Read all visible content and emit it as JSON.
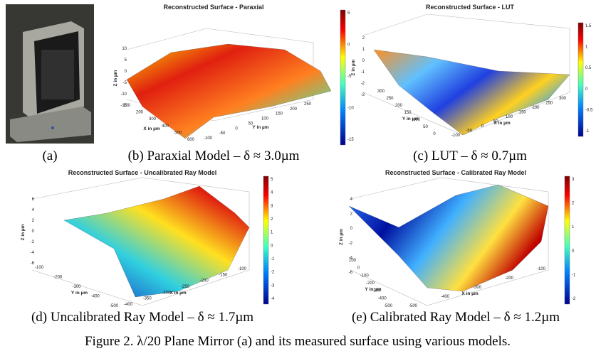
{
  "figure": {
    "caption": "Figure 2. λ/20 Plane Mirror (a) and its measured surface using various models.",
    "panels": [
      {
        "caption": "(a)"
      },
      {
        "caption": "(b) Paraxial Model – δ ≈ 3.0µm",
        "title": "Reconstructed Surface - Paraxial",
        "z_label": "Z in µm",
        "x_label": "X in µm",
        "y_label": "Y in µm",
        "colorbar_ticks": [
          "5",
          "0",
          "-5",
          "-10",
          "-15"
        ],
        "z_ticks": [
          "10",
          "5",
          "0",
          "-5",
          "-10",
          "-15"
        ],
        "x_ticks": [
          "100",
          "200",
          "300",
          "400",
          "500",
          "600"
        ],
        "y_ticks": [
          "-100",
          "-50",
          "0",
          "50",
          "100",
          "150",
          "200",
          "250"
        ]
      },
      {
        "caption": "(c) LUT – δ ≈ 0.7µm",
        "title": "Reconstructed Surface - LUT",
        "z_label": "Z in µm",
        "x_label": "X in µm",
        "y_label": "Y in µm",
        "colorbar_ticks": [
          "1.5",
          "1",
          "0.5",
          "0",
          "-0.5",
          "-1"
        ],
        "z_ticks": [
          "2",
          "1",
          "0",
          "-1",
          "-2",
          "-3"
        ],
        "x_ticks": [
          "-100",
          "-50",
          "0",
          "50",
          "100",
          "150",
          "200",
          "250",
          "300"
        ],
        "y_ticks": [
          "300",
          "250",
          "200",
          "150",
          "100",
          "50",
          "0"
        ]
      },
      {
        "caption": "(d) Uncalibrated Ray Model – δ ≈ 1.7µm",
        "title": "Reconstructed Surface - Uncalibrated Ray Model",
        "z_label": "Z in µm",
        "x_label": "X in µm",
        "y_label": "Y in µm",
        "colorbar_ticks": [
          "5",
          "4",
          "3",
          "2",
          "1",
          "0",
          "-1",
          "-2",
          "-3",
          "-4"
        ],
        "z_ticks": [
          "6",
          "4",
          "2",
          "0",
          "-2",
          "-4",
          "-6"
        ],
        "x_ticks": [
          "-400",
          "-350",
          "-300",
          "-250",
          "-200",
          "-150",
          "-100"
        ],
        "y_ticks": [
          "-100",
          "-200",
          "-300",
          "-400",
          "-500"
        ]
      },
      {
        "caption": "(e) Calibrated Ray Model – δ ≈ 1.2µm",
        "title": "Reconstructed Surface - Calibrated Ray Model",
        "z_label": "Z in µm",
        "x_label": "X in µm",
        "y_label": "Y in µm",
        "colorbar_ticks": [
          "3",
          "2",
          "1",
          "0",
          "-1",
          "-2"
        ],
        "z_ticks": [
          "4",
          "2",
          "0",
          "-2",
          "-4",
          "-6"
        ],
        "x_ticks": [
          "-500",
          "-400",
          "-300",
          "-200",
          "-100"
        ],
        "y_ticks": [
          "100",
          "0",
          "-100",
          "-200",
          "-300",
          "-400",
          "-500"
        ]
      }
    ]
  }
}
